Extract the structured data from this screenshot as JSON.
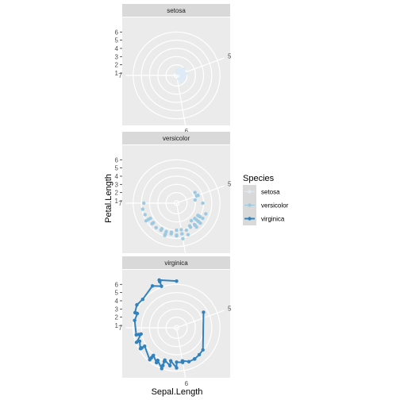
{
  "chart_data": {
    "type": "scatter",
    "coordinate_system": "polar",
    "facet_variable": "Species",
    "facets": [
      "setosa",
      "versicolor",
      "virginica"
    ],
    "xlabel": "Sepal.Length",
    "ylabel": "Petal.Length",
    "angle_variable": "Sepal.Length",
    "radius_variable": "Petal.Length",
    "x_ticks": [
      "5",
      "6",
      "7"
    ],
    "y_ticks": [
      "1",
      "2",
      "3",
      "4",
      "5",
      "6"
    ],
    "xlim": [
      4.3,
      7.9
    ],
    "ylim": [
      1,
      6.9
    ],
    "grid": true,
    "legend": {
      "title": "Species",
      "position": "right",
      "entries": [
        "setosa",
        "versicolor",
        "virginica"
      ]
    },
    "series": [
      {
        "name": "setosa",
        "color": "#deebf7",
        "line": false,
        "points": [
          [
            5.1,
            1.4
          ],
          [
            4.9,
            1.4
          ],
          [
            4.7,
            1.3
          ],
          [
            4.6,
            1.5
          ],
          [
            5.0,
            1.4
          ],
          [
            5.4,
            1.7
          ],
          [
            4.6,
            1.4
          ],
          [
            5.0,
            1.5
          ],
          [
            4.4,
            1.4
          ],
          [
            4.9,
            1.5
          ],
          [
            5.4,
            1.5
          ],
          [
            4.8,
            1.6
          ],
          [
            4.8,
            1.4
          ],
          [
            4.3,
            1.1
          ],
          [
            5.8,
            1.2
          ],
          [
            5.7,
            1.5
          ],
          [
            5.4,
            1.3
          ],
          [
            5.1,
            1.4
          ],
          [
            5.7,
            1.7
          ],
          [
            5.1,
            1.5
          ],
          [
            5.4,
            1.7
          ],
          [
            5.1,
            1.5
          ],
          [
            4.6,
            1.0
          ],
          [
            5.1,
            1.7
          ],
          [
            4.8,
            1.9
          ],
          [
            5.0,
            1.6
          ],
          [
            5.0,
            1.6
          ],
          [
            5.2,
            1.5
          ],
          [
            5.2,
            1.4
          ],
          [
            4.7,
            1.6
          ],
          [
            4.8,
            1.6
          ],
          [
            5.4,
            1.5
          ],
          [
            5.2,
            1.5
          ],
          [
            5.5,
            1.4
          ],
          [
            4.9,
            1.5
          ],
          [
            5.0,
            1.2
          ],
          [
            5.5,
            1.3
          ],
          [
            4.9,
            1.4
          ],
          [
            4.4,
            1.3
          ],
          [
            5.1,
            1.5
          ],
          [
            5.0,
            1.3
          ],
          [
            4.5,
            1.3
          ],
          [
            4.4,
            1.3
          ],
          [
            5.0,
            1.6
          ],
          [
            5.1,
            1.9
          ],
          [
            4.8,
            1.4
          ],
          [
            5.1,
            1.6
          ],
          [
            4.6,
            1.4
          ],
          [
            5.3,
            1.5
          ],
          [
            5.0,
            1.4
          ]
        ]
      },
      {
        "name": "versicolor",
        "color": "#9ecae1",
        "line": false,
        "points": [
          [
            7.0,
            4.7
          ],
          [
            6.4,
            4.5
          ],
          [
            6.9,
            4.9
          ],
          [
            5.5,
            4.0
          ],
          [
            6.5,
            4.6
          ],
          [
            5.7,
            4.5
          ],
          [
            6.3,
            4.7
          ],
          [
            4.9,
            3.3
          ],
          [
            6.6,
            4.6
          ],
          [
            5.2,
            3.9
          ],
          [
            5.0,
            3.5
          ],
          [
            5.9,
            4.2
          ],
          [
            6.0,
            4.0
          ],
          [
            6.1,
            4.7
          ],
          [
            5.6,
            3.6
          ],
          [
            6.7,
            4.4
          ],
          [
            5.6,
            4.5
          ],
          [
            5.8,
            4.1
          ],
          [
            6.2,
            4.5
          ],
          [
            5.6,
            3.9
          ],
          [
            5.9,
            4.8
          ],
          [
            6.1,
            4.0
          ],
          [
            6.3,
            4.9
          ],
          [
            6.1,
            4.7
          ],
          [
            6.4,
            4.3
          ],
          [
            6.6,
            4.4
          ],
          [
            6.8,
            4.8
          ],
          [
            6.7,
            5.0
          ],
          [
            6.0,
            4.5
          ],
          [
            5.7,
            3.5
          ],
          [
            5.5,
            3.8
          ],
          [
            5.5,
            3.7
          ],
          [
            5.8,
            3.9
          ],
          [
            6.0,
            5.1
          ],
          [
            5.4,
            4.5
          ],
          [
            6.0,
            4.5
          ],
          [
            6.7,
            4.7
          ],
          [
            6.3,
            4.4
          ],
          [
            5.6,
            4.1
          ],
          [
            5.5,
            4.0
          ],
          [
            5.5,
            4.4
          ],
          [
            6.1,
            4.6
          ],
          [
            5.8,
            4.0
          ],
          [
            5.0,
            3.3
          ],
          [
            5.6,
            4.2
          ],
          [
            5.7,
            4.2
          ],
          [
            5.7,
            4.2
          ],
          [
            6.2,
            4.3
          ],
          [
            5.1,
            3.0
          ],
          [
            5.7,
            4.1
          ]
        ]
      },
      {
        "name": "virginica",
        "color": "#3182bd",
        "line": true,
        "points": [
          [
            6.3,
            6.0
          ],
          [
            5.8,
            5.1
          ],
          [
            7.1,
            5.9
          ],
          [
            6.3,
            5.6
          ],
          [
            6.5,
            5.8
          ],
          [
            7.6,
            6.6
          ],
          [
            4.9,
            4.5
          ],
          [
            7.3,
            6.3
          ],
          [
            6.7,
            5.8
          ],
          [
            7.2,
            6.1
          ],
          [
            6.5,
            5.1
          ],
          [
            6.4,
            5.3
          ],
          [
            6.8,
            5.5
          ],
          [
            5.7,
            5.0
          ],
          [
            5.8,
            5.1
          ],
          [
            6.4,
            5.3
          ],
          [
            6.5,
            5.5
          ],
          [
            7.7,
            6.7
          ],
          [
            7.7,
            6.9
          ],
          [
            6.0,
            5.0
          ],
          [
            6.9,
            5.7
          ],
          [
            5.6,
            4.9
          ],
          [
            7.7,
            6.7
          ],
          [
            6.3,
            4.9
          ],
          [
            6.7,
            5.7
          ],
          [
            7.2,
            6.0
          ],
          [
            6.2,
            4.8
          ],
          [
            6.1,
            4.9
          ],
          [
            6.4,
            5.6
          ],
          [
            7.2,
            5.8
          ],
          [
            7.4,
            6.1
          ],
          [
            7.9,
            6.4
          ],
          [
            6.4,
            5.6
          ],
          [
            6.3,
            5.1
          ],
          [
            6.1,
            5.6
          ],
          [
            7.7,
            6.1
          ],
          [
            6.3,
            5.6
          ],
          [
            6.4,
            5.5
          ],
          [
            6.0,
            4.8
          ],
          [
            6.9,
            5.4
          ],
          [
            6.7,
            5.6
          ],
          [
            6.9,
            5.1
          ],
          [
            5.8,
            5.1
          ],
          [
            6.8,
            5.9
          ],
          [
            6.7,
            5.7
          ],
          [
            6.7,
            5.2
          ],
          [
            6.3,
            5.0
          ],
          [
            6.5,
            5.2
          ],
          [
            6.2,
            5.4
          ],
          [
            5.9,
            5.1
          ]
        ]
      }
    ]
  }
}
